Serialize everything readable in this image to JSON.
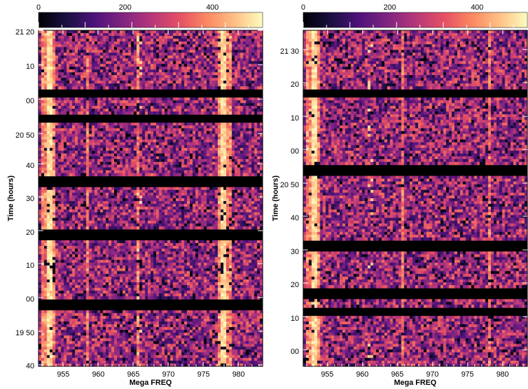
{
  "chart_data": [
    {
      "type": "heatmap",
      "colormap": "magma",
      "colorbar": {
        "ticks": [
          0,
          200,
          400
        ],
        "range": [
          0,
          480
        ]
      },
      "xlabel": "Mega FREQ",
      "ylabel": "Time (hours)",
      "xlim": [
        951.5,
        983.5
      ],
      "xticks": [
        955,
        960,
        965,
        970,
        975,
        980
      ],
      "yticks": [
        "21 20",
        "10",
        "00",
        "20 50",
        "40",
        "30",
        "20",
        "10",
        "00",
        "19 50",
        "40"
      ],
      "gaps": [
        3,
        4.2,
        7.2,
        9.7,
        13.1
      ],
      "bright_channels": [
        953,
        978
      ],
      "weak_channels": [
        958.5,
        965.8
      ],
      "blob_channels": [
        965.8
      ]
    },
    {
      "type": "heatmap",
      "colormap": "magma",
      "colorbar": {
        "ticks": [
          0,
          200,
          400
        ],
        "range": [
          0,
          480
        ]
      },
      "xlabel": "Mega FREQ",
      "ylabel": "Time (hours)",
      "xlim": [
        951.5,
        983.5
      ],
      "xticks": [
        955,
        960,
        965,
        970,
        975,
        980
      ],
      "yticks": [
        "21 30",
        "20",
        "10",
        "00",
        "20 50",
        "40",
        "30",
        "20",
        "10",
        "00"
      ],
      "gaps": [
        3,
        6.7,
        10.3,
        12.5,
        13.4
      ],
      "bright_channels": [
        953
      ],
      "weak_channels": [
        978,
        965.8
      ],
      "blob_channels": [
        961
      ]
    }
  ]
}
